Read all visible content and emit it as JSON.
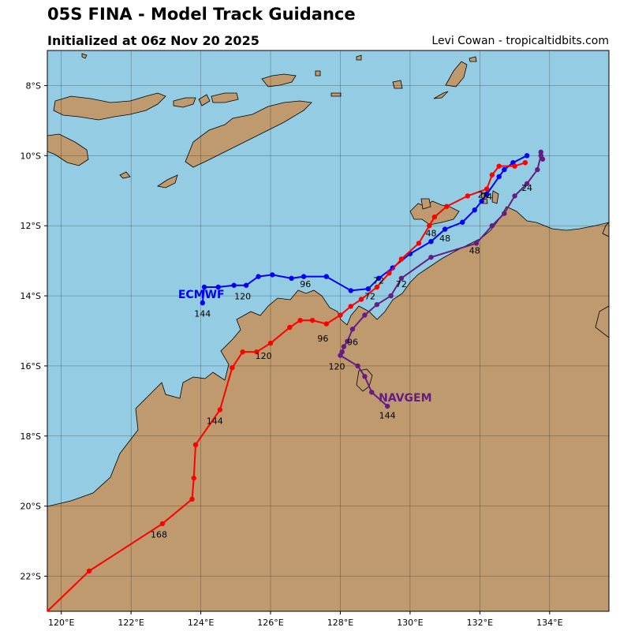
{
  "header": {
    "title": "05S FINA - Model Track Guidance",
    "subtitle": "Initialized at 06z Nov 20 2025",
    "credit": "Levi Cowan - tropicaltidbits.com"
  },
  "map": {
    "ocean_color": "#94cde3",
    "land_color": "#bf9a6e",
    "border_color": "#000000",
    "lon_range": [
      119.6,
      135.7
    ],
    "lat_range": [
      -23.0,
      -7.0
    ],
    "lon_ticks": [
      "120°E",
      "122°E",
      "124°E",
      "126°E",
      "128°E",
      "130°E",
      "132°E",
      "134°E"
    ],
    "lat_ticks": [
      "8°S",
      "10°S",
      "12°S",
      "14°S",
      "16°S",
      "18°S",
      "20°S",
      "22°S"
    ]
  },
  "tracks": [
    {
      "name": "ECMWF",
      "color": "#0000ff",
      "points": [
        [
          133.35,
          -10.0
        ],
        [
          132.95,
          -10.2
        ],
        [
          132.7,
          -10.4
        ],
        [
          132.55,
          -10.6
        ],
        [
          132.2,
          -11.1
        ],
        [
          132.05,
          -11.3
        ],
        [
          131.85,
          -11.55
        ],
        [
          131.5,
          -11.9
        ],
        [
          131.0,
          -12.1
        ],
        [
          130.6,
          -12.45
        ],
        [
          130.0,
          -12.8
        ],
        [
          129.5,
          -13.2
        ],
        [
          129.1,
          -13.5
        ],
        [
          128.8,
          -13.8
        ],
        [
          128.3,
          -13.85
        ],
        [
          127.6,
          -13.45
        ],
        [
          126.95,
          -13.45
        ],
        [
          126.6,
          -13.5
        ],
        [
          126.05,
          -13.4
        ],
        [
          125.65,
          -13.45
        ],
        [
          125.3,
          -13.7
        ],
        [
          124.95,
          -13.7
        ],
        [
          124.5,
          -13.75
        ],
        [
          124.1,
          -13.75
        ],
        [
          124.05,
          -14.2
        ]
      ],
      "hour_labels": [
        {
          "text": "24",
          "lon": 132.2,
          "lat": -11.25
        },
        {
          "text": "48",
          "lon": 131.0,
          "lat": -12.45
        },
        {
          "text": "72",
          "lon": 129.1,
          "lat": -13.65
        },
        {
          "text": "96",
          "lon": 127.0,
          "lat": -13.75
        },
        {
          "text": "120",
          "lon": 125.2,
          "lat": -14.1
        },
        {
          "text": "144",
          "lon": 124.05,
          "lat": -14.6
        }
      ],
      "model_label": {
        "text": "ECMWF",
        "lon": 123.35,
        "lat": -13.95
      }
    },
    {
      "name": "",
      "color": "#ff0000",
      "points": [
        [
          133.3,
          -10.2
        ],
        [
          133.0,
          -10.3
        ],
        [
          132.55,
          -10.3
        ],
        [
          132.35,
          -10.55
        ],
        [
          132.2,
          -10.95
        ],
        [
          131.65,
          -11.15
        ],
        [
          131.05,
          -11.45
        ],
        [
          130.7,
          -11.75
        ],
        [
          130.55,
          -12.0
        ],
        [
          130.25,
          -12.5
        ],
        [
          129.75,
          -12.95
        ],
        [
          129.4,
          -13.35
        ],
        [
          129.05,
          -13.75
        ],
        [
          128.6,
          -14.1
        ],
        [
          128.3,
          -14.3
        ],
        [
          128.0,
          -14.55
        ],
        [
          127.6,
          -14.8
        ],
        [
          127.2,
          -14.7
        ],
        [
          126.85,
          -14.7
        ],
        [
          126.55,
          -14.9
        ],
        [
          126.0,
          -15.35
        ],
        [
          125.6,
          -15.6
        ],
        [
          125.2,
          -15.6
        ],
        [
          124.9,
          -16.05
        ],
        [
          124.55,
          -17.25
        ],
        [
          123.85,
          -18.25
        ],
        [
          123.8,
          -19.2
        ],
        [
          123.75,
          -19.8
        ],
        [
          122.9,
          -20.5
        ],
        [
          120.8,
          -21.85
        ],
        [
          119.6,
          -23.0
        ]
      ],
      "hour_labels": [
        {
          "text": "24",
          "lon": 132.1,
          "lat": -11.2
        },
        {
          "text": "48",
          "lon": 130.6,
          "lat": -12.3
        },
        {
          "text": "72",
          "lon": 128.85,
          "lat": -14.1
        },
        {
          "text": "96",
          "lon": 127.5,
          "lat": -15.3
        },
        {
          "text": "120",
          "lon": 125.8,
          "lat": -15.8
        },
        {
          "text": "144",
          "lon": 124.4,
          "lat": -17.65
        },
        {
          "text": "168",
          "lon": 122.8,
          "lat": -20.9
        }
      ],
      "model_label": null
    },
    {
      "name": "NAVGEM",
      "color": "#641e82",
      "points": [
        [
          133.75,
          -9.9
        ],
        [
          133.8,
          -10.1
        ],
        [
          133.75,
          -10.0
        ],
        [
          133.65,
          -10.4
        ],
        [
          133.35,
          -10.8
        ],
        [
          133.0,
          -11.15
        ],
        [
          132.7,
          -11.65
        ],
        [
          132.35,
          -12.0
        ],
        [
          131.9,
          -12.5
        ],
        [
          130.6,
          -12.9
        ],
        [
          129.75,
          -13.5
        ],
        [
          129.45,
          -14.0
        ],
        [
          129.05,
          -14.25
        ],
        [
          128.7,
          -14.55
        ],
        [
          128.35,
          -14.95
        ],
        [
          128.2,
          -15.3
        ],
        [
          128.1,
          -15.45
        ],
        [
          128.05,
          -15.6
        ],
        [
          128.0,
          -15.7
        ],
        [
          128.5,
          -16.0
        ],
        [
          128.7,
          -16.3
        ],
        [
          128.9,
          -16.75
        ],
        [
          129.35,
          -17.15
        ]
      ],
      "hour_labels": [
        {
          "text": "24",
          "lon": 133.35,
          "lat": -11.0
        },
        {
          "text": "48",
          "lon": 131.85,
          "lat": -12.8
        },
        {
          "text": "72",
          "lon": 129.75,
          "lat": -13.75
        },
        {
          "text": "96",
          "lon": 128.35,
          "lat": -15.4
        },
        {
          "text": "120",
          "lon": 127.9,
          "lat": -16.1
        },
        {
          "text": "144",
          "lon": 129.35,
          "lat": -17.5
        }
      ],
      "model_label": {
        "text": "NAVGEM",
        "lon": 129.1,
        "lat": -16.9
      }
    }
  ]
}
